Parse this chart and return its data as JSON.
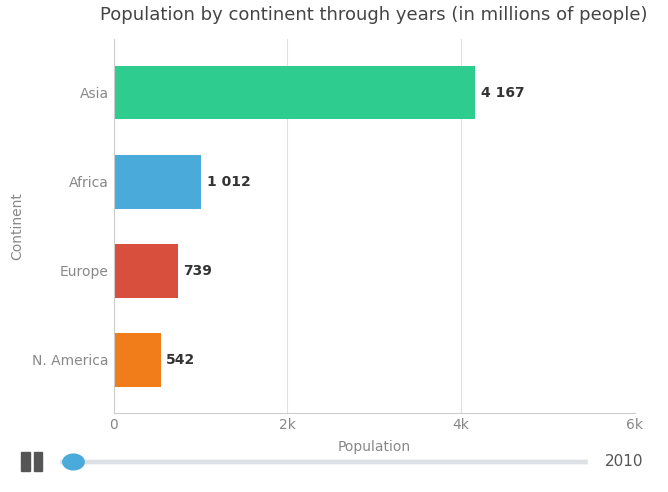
{
  "title": "Population by continent through years (in millions of people)",
  "continents": [
    "N. America",
    "Europe",
    "Africa",
    "Asia"
  ],
  "values": [
    542,
    739,
    1012,
    4167
  ],
  "colors": [
    "#f07d1a",
    "#d94f3d",
    "#4aabdb",
    "#2ecc8e"
  ],
  "xlabel": "Population",
  "ylabel": "Continent",
  "xlim": [
    0,
    6000
  ],
  "xticks": [
    0,
    2000,
    4000,
    6000
  ],
  "xticklabels": [
    "0",
    "2k",
    "4k",
    "6k"
  ],
  "bar_labels": [
    "542",
    "739",
    "1 012",
    "4 167"
  ],
  "year": "2010",
  "bg_color": "#ffffff",
  "plot_bg_color": "#ffffff",
  "title_fontsize": 13,
  "label_fontsize": 10,
  "tick_fontsize": 10,
  "bar_value_fontsize": 10,
  "bar_height": 0.6,
  "slider_bg": "#dde1e5",
  "slider_fill": "#4aabdb",
  "btn_bg": "#e8eaed",
  "btn_icon": "#555555"
}
